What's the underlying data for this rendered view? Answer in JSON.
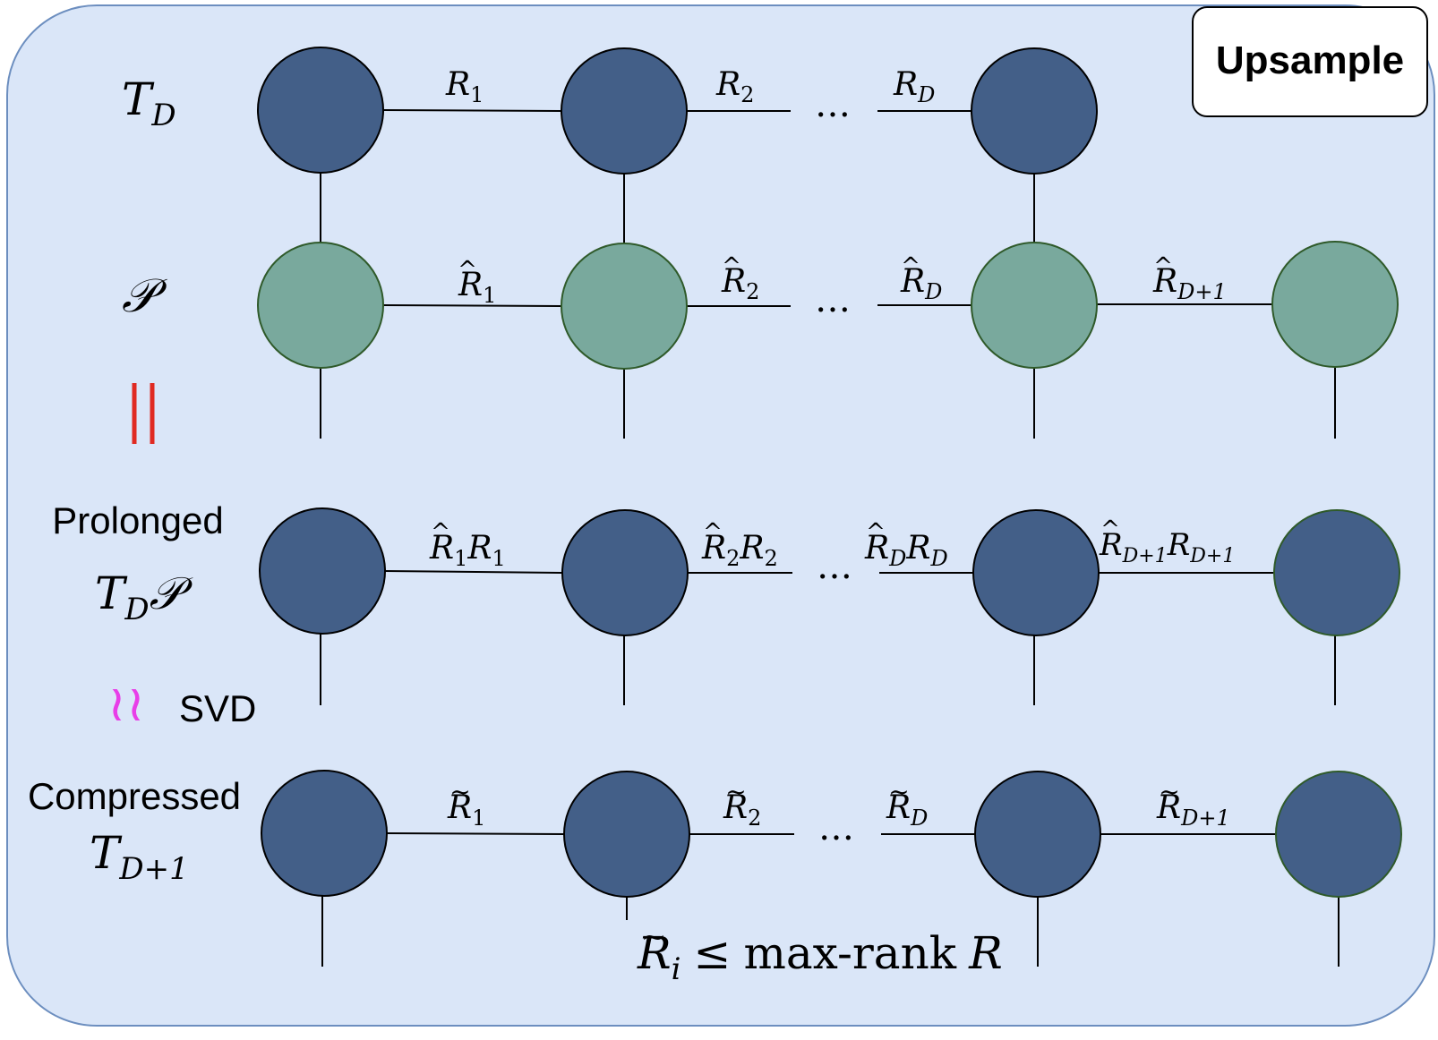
{
  "badge": {
    "label": "Upsample"
  },
  "colors": {
    "panel_fill": "#dae6f8",
    "panel_stroke": "#6c8ebf",
    "dark_node": "#435f88",
    "green_node": "#79a99d",
    "green_stroke": "#2f5a2a",
    "equals_mark": "#e02a22",
    "approx_mark": "#e83ee8"
  },
  "rows": {
    "td": {
      "label_main": "T",
      "label_sub": "D",
      "edges": [
        {
          "main": "R",
          "sub": "1",
          "hat": false,
          "tilde": false
        },
        {
          "main": "R",
          "sub": "2",
          "hat": false,
          "tilde": false
        },
        {
          "main": "R",
          "sub": "D",
          "hat": false,
          "tilde": false
        }
      ],
      "dots": "…"
    },
    "p": {
      "label": "𝒫",
      "edges": [
        {
          "main": "R",
          "sub": "1",
          "hat": true
        },
        {
          "main": "R",
          "sub": "2",
          "hat": true
        },
        {
          "main": "R",
          "sub": "D",
          "hat": true
        },
        {
          "main": "R",
          "sub": "D+1",
          "hat": true
        }
      ],
      "dots": "…"
    },
    "prolonged": {
      "title": "Prolonged",
      "label_main": "T",
      "label_sub": "D",
      "label_tail": "𝒫",
      "edges": [
        {
          "a": "R",
          "asub": "1",
          "b": "R",
          "bsub": "1"
        },
        {
          "a": "R",
          "asub": "2",
          "b": "R",
          "bsub": "2"
        },
        {
          "a": "R",
          "asub": "D",
          "b": "R",
          "bsub": "D"
        },
        {
          "a": "R",
          "asub": "D+1",
          "b": "R",
          "bsub": "D+1"
        }
      ],
      "dots": "…"
    },
    "compressed": {
      "title": "Compressed",
      "label_main": "T",
      "label_sub": "D+1",
      "edges": [
        {
          "main": "R",
          "sub": "1",
          "tilde": true
        },
        {
          "main": "R",
          "sub": "2",
          "tilde": true
        },
        {
          "main": "R",
          "sub": "D",
          "tilde": true
        },
        {
          "main": "R",
          "sub": "D+1",
          "tilde": true
        }
      ],
      "dots": "…"
    }
  },
  "relations": {
    "equals": "||",
    "approx": "≀≀",
    "svd": "SVD"
  },
  "constraint": {
    "lhs_main": "R",
    "lhs_sub": "i",
    "leq": "≤",
    "text": "max-rank",
    "rhs": "R"
  }
}
